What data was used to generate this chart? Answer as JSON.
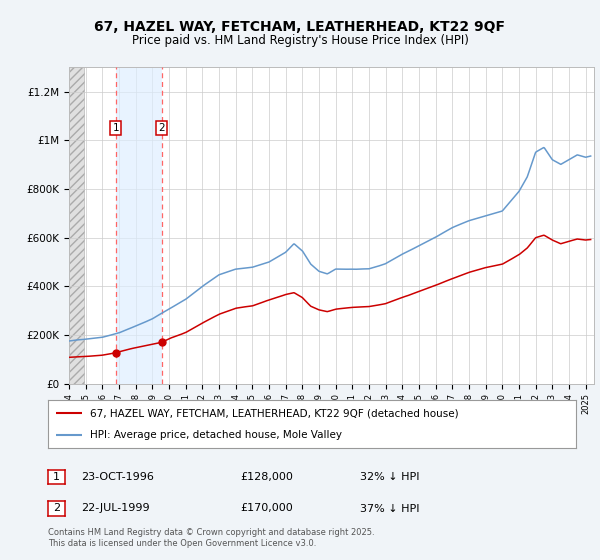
{
  "title_line1": "67, HAZEL WAY, FETCHAM, LEATHERHEAD, KT22 9QF",
  "title_line2": "Price paid vs. HM Land Registry's House Price Index (HPI)",
  "ylabel_ticks": [
    "£0",
    "£200K",
    "£400K",
    "£600K",
    "£800K",
    "£1M",
    "£1.2M"
  ],
  "ylim": [
    0,
    1300000
  ],
  "xlim_start": 1994.0,
  "xlim_end": 2025.5,
  "sale1_date": 1996.81,
  "sale2_date": 1999.55,
  "sale1_price": 128000,
  "sale2_price": 170000,
  "legend_red": "67, HAZEL WAY, FETCHAM, LEATHERHEAD, KT22 9QF (detached house)",
  "legend_blue": "HPI: Average price, detached house, Mole Valley",
  "table_row1": [
    "1",
    "23-OCT-1996",
    "£128,000",
    "32% ↓ HPI"
  ],
  "table_row2": [
    "2",
    "22-JUL-1999",
    "£170,000",
    "37% ↓ HPI"
  ],
  "footer": "Contains HM Land Registry data © Crown copyright and database right 2025.\nThis data is licensed under the Open Government Licence v3.0.",
  "bg_color": "#f0f4f8",
  "plot_bg": "#ffffff",
  "red_color": "#cc0000",
  "blue_color": "#6699cc",
  "hatch_color": "#cccccc",
  "hpi_keypoints": [
    [
      1994.0,
      175000
    ],
    [
      1995.0,
      183000
    ],
    [
      1996.0,
      192000
    ],
    [
      1997.0,
      210000
    ],
    [
      1998.0,
      238000
    ],
    [
      1999.0,
      268000
    ],
    [
      2000.0,
      308000
    ],
    [
      2001.0,
      348000
    ],
    [
      2002.0,
      400000
    ],
    [
      2003.0,
      448000
    ],
    [
      2004.0,
      470000
    ],
    [
      2005.0,
      478000
    ],
    [
      2006.0,
      500000
    ],
    [
      2007.0,
      540000
    ],
    [
      2007.5,
      575000
    ],
    [
      2008.0,
      545000
    ],
    [
      2008.5,
      490000
    ],
    [
      2009.0,
      460000
    ],
    [
      2009.5,
      450000
    ],
    [
      2010.0,
      470000
    ],
    [
      2011.0,
      468000
    ],
    [
      2012.0,
      470000
    ],
    [
      2013.0,
      490000
    ],
    [
      2014.0,
      530000
    ],
    [
      2015.0,
      565000
    ],
    [
      2016.0,
      600000
    ],
    [
      2017.0,
      640000
    ],
    [
      2018.0,
      670000
    ],
    [
      2019.0,
      690000
    ],
    [
      2020.0,
      710000
    ],
    [
      2021.0,
      790000
    ],
    [
      2021.5,
      850000
    ],
    [
      2022.0,
      950000
    ],
    [
      2022.5,
      970000
    ],
    [
      2023.0,
      920000
    ],
    [
      2023.5,
      900000
    ],
    [
      2024.0,
      920000
    ],
    [
      2024.5,
      940000
    ],
    [
      2025.0,
      930000
    ],
    [
      2025.3,
      935000
    ]
  ],
  "red_keypoints": [
    [
      1994.0,
      108000
    ],
    [
      1994.5,
      110000
    ],
    [
      1995.0,
      112000
    ],
    [
      1996.0,
      118000
    ],
    [
      1996.81,
      128000
    ],
    [
      1997.5,
      140000
    ],
    [
      1998.0,
      148000
    ],
    [
      1998.5,
      155000
    ],
    [
      1999.0,
      162000
    ],
    [
      1999.55,
      170000
    ],
    [
      2000.0,
      185000
    ],
    [
      2001.0,
      210000
    ],
    [
      2002.0,
      248000
    ],
    [
      2003.0,
      285000
    ],
    [
      2004.0,
      310000
    ],
    [
      2005.0,
      320000
    ],
    [
      2006.0,
      345000
    ],
    [
      2007.0,
      368000
    ],
    [
      2007.5,
      375000
    ],
    [
      2008.0,
      355000
    ],
    [
      2008.5,
      320000
    ],
    [
      2009.0,
      305000
    ],
    [
      2009.5,
      298000
    ],
    [
      2010.0,
      308000
    ],
    [
      2011.0,
      315000
    ],
    [
      2012.0,
      318000
    ],
    [
      2013.0,
      330000
    ],
    [
      2014.0,
      355000
    ],
    [
      2015.0,
      380000
    ],
    [
      2016.0,
      405000
    ],
    [
      2017.0,
      432000
    ],
    [
      2018.0,
      458000
    ],
    [
      2019.0,
      478000
    ],
    [
      2020.0,
      492000
    ],
    [
      2021.0,
      530000
    ],
    [
      2021.5,
      558000
    ],
    [
      2022.0,
      600000
    ],
    [
      2022.5,
      610000
    ],
    [
      2023.0,
      590000
    ],
    [
      2023.5,
      575000
    ],
    [
      2024.0,
      585000
    ],
    [
      2024.5,
      595000
    ],
    [
      2025.0,
      590000
    ],
    [
      2025.3,
      592000
    ]
  ]
}
